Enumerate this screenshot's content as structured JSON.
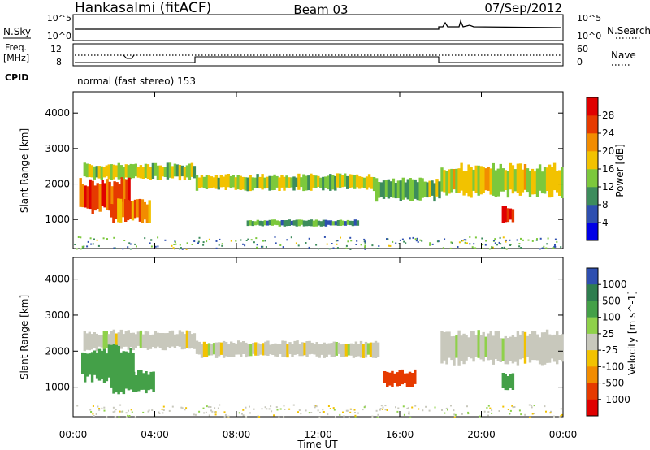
{
  "header": {
    "station": "Hankasalmi (fitACF)",
    "beam": "Beam 03",
    "date": "07/Sep/2012"
  },
  "strips": {
    "nsky_label": "N.Sky",
    "nsky_ticks": [
      "10^5",
      "10^0"
    ],
    "nsearch_label": "N.Search",
    "nsearch_ticks": [
      "10^5",
      "10^0"
    ],
    "freq_label_line1": "Freq.",
    "freq_label_line2": "[MHz]",
    "freq_ticks": [
      "12",
      "8"
    ],
    "nave_label": "Nave",
    "nave_ticks": [
      "60",
      "0"
    ],
    "cpid_label": "CPID",
    "cpid_text": "normal (fast stereo) 153"
  },
  "chart_data": [
    {
      "type": "heatmap",
      "panel": "power",
      "ylabel": "Slant Range [km]",
      "y_ticks": [
        "1000",
        "2000",
        "3000",
        "4000"
      ],
      "ylim": [
        180,
        4600
      ],
      "xlim": [
        0,
        24
      ],
      "colorbar_label": "Power [dB]",
      "colorbar_ticks": [
        "4",
        "8",
        "12",
        "16",
        "20",
        "24",
        "28"
      ],
      "colorbar_range": [
        0,
        30
      ],
      "colors": [
        "#0000e6",
        "#2e4fb0",
        "#3d8c5c",
        "#7cc83c",
        "#f2c200",
        "#f28c00",
        "#e63a00",
        "#e00000"
      ],
      "echo_regions": [
        {
          "t": [
            0.5,
            6.0
          ],
          "r": [
            2100,
            2600
          ],
          "level": 14
        },
        {
          "t": [
            0.3,
            2.8
          ],
          "r": [
            1100,
            2200
          ],
          "level": 24
        },
        {
          "t": [
            1.8,
            3.8
          ],
          "r": [
            900,
            1600
          ],
          "level": 22
        },
        {
          "t": [
            6.0,
            14.8
          ],
          "r": [
            1800,
            2300
          ],
          "level": 14
        },
        {
          "t": [
            14.8,
            18.0
          ],
          "r": [
            1500,
            2200
          ],
          "level": 12
        },
        {
          "t": [
            18.0,
            24.0
          ],
          "r": [
            1600,
            2600
          ],
          "level": 16
        },
        {
          "t": [
            21.0,
            21.6
          ],
          "r": [
            900,
            1400
          ],
          "level": 28
        },
        {
          "t": [
            8.5,
            14.0
          ],
          "r": [
            800,
            1000
          ],
          "level": 10
        }
      ]
    },
    {
      "type": "heatmap",
      "panel": "velocity",
      "ylabel": "Slant Range [km]",
      "y_ticks": [
        "1000",
        "2000",
        "3000",
        "4000"
      ],
      "ylim": [
        180,
        4600
      ],
      "xlim": [
        0,
        24
      ],
      "x_ticks": [
        "00:00",
        "04:00",
        "08:00",
        "12:00",
        "16:00",
        "20:00",
        "00:00"
      ],
      "xlabel": "Time UT",
      "colorbar_label": "Velocity [m s^-1]",
      "colorbar_ticks": [
        "1000",
        "500",
        "100",
        "25",
        "-25",
        "-100",
        "-500",
        "-1000"
      ],
      "colors": [
        "#2e4fb0",
        "#2e7d4f",
        "#44a048",
        "#8fd14a",
        "#c8c8bc",
        "#f2c200",
        "#f28c00",
        "#e63a00",
        "#e00000"
      ],
      "echo_regions": [
        {
          "t": [
            0.5,
            6.0
          ],
          "r": [
            2000,
            2600
          ],
          "v": 0
        },
        {
          "t": [
            0.4,
            3.0
          ],
          "r": [
            1100,
            2200
          ],
          "v": 300
        },
        {
          "t": [
            1.8,
            4.0
          ],
          "r": [
            800,
            1500
          ],
          "v": 200
        },
        {
          "t": [
            6.0,
            15.0
          ],
          "r": [
            1800,
            2300
          ],
          "v": 0
        },
        {
          "t": [
            15.2,
            16.8
          ],
          "r": [
            1000,
            1500
          ],
          "v": -700
        },
        {
          "t": [
            18.0,
            24.0
          ],
          "r": [
            1600,
            2600
          ],
          "v": 0
        },
        {
          "t": [
            21.0,
            21.6
          ],
          "r": [
            900,
            1400
          ],
          "v": 300
        }
      ]
    }
  ]
}
